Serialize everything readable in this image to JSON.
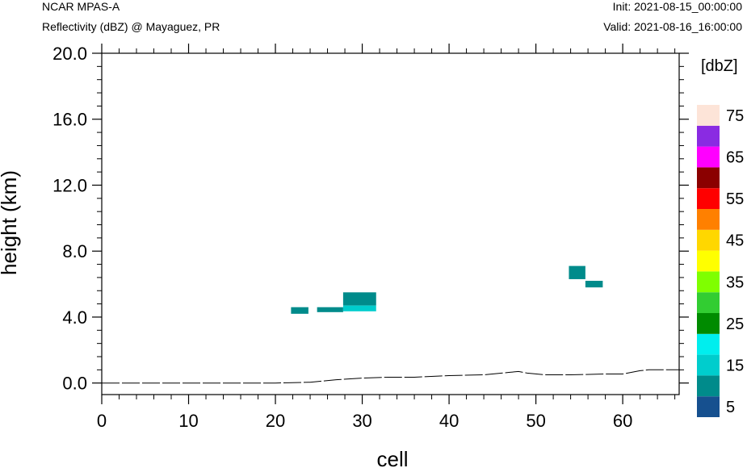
{
  "header": {
    "model": "NCAR MPAS-A",
    "field": "Reflectivity (dBZ) @ Mayaguez, PR",
    "init": "Init: 2021-08-15_00:00:00",
    "valid": "Valid: 2021-08-16_16:00:00"
  },
  "chart_data": {
    "type": "heatmap",
    "title": "Reflectivity (dBZ) @ Mayaguez, PR",
    "xlabel": "cell",
    "ylabel": "height (km)",
    "xlim": [
      0,
      66.5
    ],
    "ylim": [
      -0.7,
      20.0
    ],
    "xticks": [
      0,
      10,
      20,
      30,
      40,
      50,
      60
    ],
    "yticks": [
      0.0,
      4.0,
      8.0,
      12.0,
      16.0,
      20.0
    ],
    "xtick_labels": [
      "0",
      "10",
      "20",
      "30",
      "40",
      "50",
      "60"
    ],
    "ytick_labels": [
      "0.0",
      "4.0",
      "8.0",
      "12.0",
      "16.0",
      "20.0"
    ],
    "colorbar": {
      "title": "[dbZ]",
      "levels": [
        0,
        5,
        10,
        15,
        20,
        25,
        30,
        35,
        40,
        45,
        50,
        55,
        60,
        65,
        70,
        75,
        80
      ],
      "labels": [
        "5",
        "15",
        "25",
        "35",
        "45",
        "55",
        "65",
        "75"
      ],
      "label_values": [
        5,
        15,
        25,
        35,
        45,
        55,
        65,
        75
      ],
      "colors": [
        "#16508f",
        "#008b8b",
        "#00cdcd",
        "#00eeee",
        "#008b00",
        "#32cd32",
        "#7fff00",
        "#ffff00",
        "#ffd700",
        "#ff8000",
        "#ff0000",
        "#8b0000",
        "#ff00ff",
        "#8a2be2",
        "#fde4d8"
      ]
    },
    "cells": [
      {
        "x0": 21.8,
        "x1": 23.8,
        "y0": 4.2,
        "y1": 4.6,
        "dbz": 5
      },
      {
        "x0": 24.8,
        "x1": 27.8,
        "y0": 4.3,
        "y1": 4.6,
        "dbz": 5
      },
      {
        "x0": 27.8,
        "x1": 31.6,
        "y0": 4.7,
        "y1": 5.5,
        "dbz": 5
      },
      {
        "x0": 27.8,
        "x1": 31.6,
        "y0": 4.35,
        "y1": 4.7,
        "dbz": 12
      },
      {
        "x0": 53.8,
        "x1": 55.7,
        "y0": 6.3,
        "y1": 7.1,
        "dbz": 5
      },
      {
        "x0": 55.7,
        "x1": 57.7,
        "y0": 5.8,
        "y1": 6.2,
        "dbz": 5
      }
    ],
    "terrain": {
      "x": [
        0,
        20,
        24,
        27,
        30,
        33,
        36,
        40,
        44,
        47,
        48,
        49,
        51,
        54,
        58,
        60,
        62,
        63,
        66.5
      ],
      "y": [
        0.0,
        0.0,
        0.05,
        0.2,
        0.3,
        0.35,
        0.35,
        0.45,
        0.5,
        0.65,
        0.7,
        0.6,
        0.5,
        0.5,
        0.55,
        0.55,
        0.75,
        0.8,
        0.8
      ]
    }
  }
}
